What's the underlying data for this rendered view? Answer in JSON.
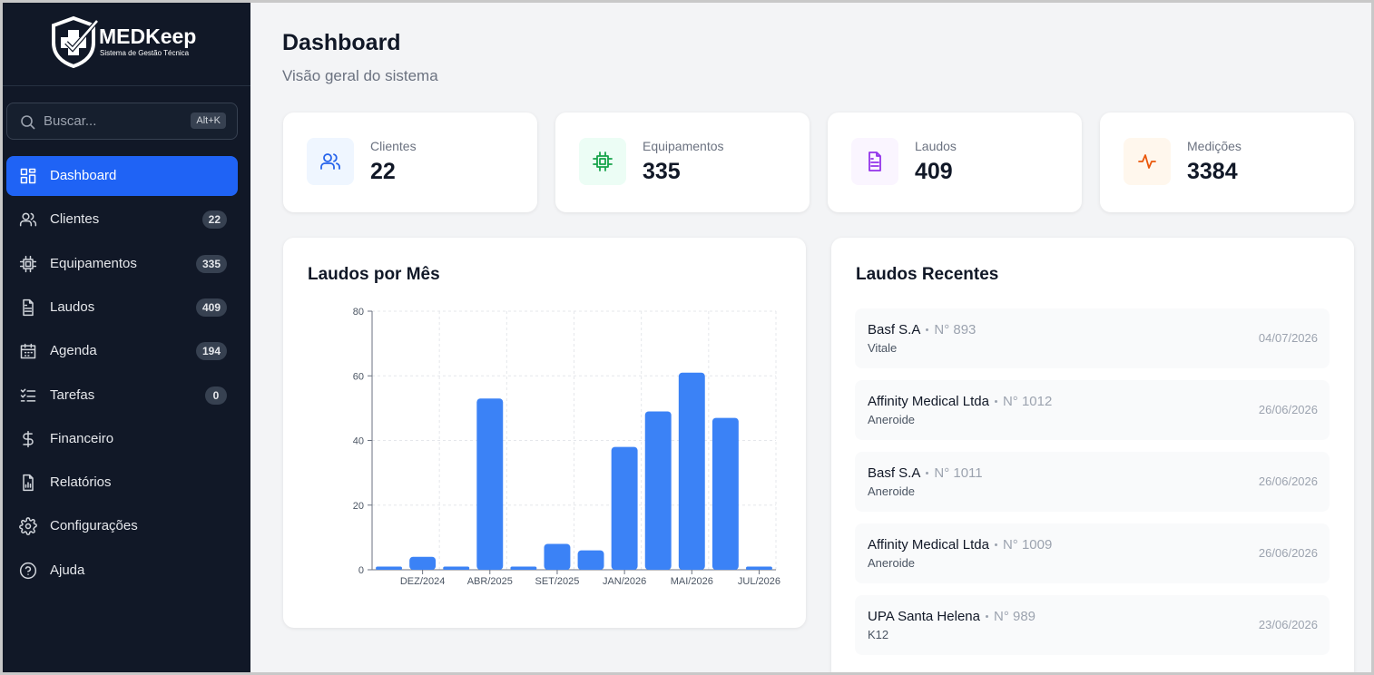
{
  "brand": {
    "name": "MEDKeep",
    "tagline": "Sistema de Gestão Técnica"
  },
  "search": {
    "placeholder": "Buscar...",
    "shortcut": "Alt+K"
  },
  "nav": [
    {
      "label": "Dashboard"
    },
    {
      "label": "Clientes",
      "count": 22
    },
    {
      "label": "Equipamentos",
      "count": 335
    },
    {
      "label": "Laudos",
      "count": 409
    },
    {
      "label": "Agenda",
      "count": 194
    },
    {
      "label": "Tarefas",
      "count": 0
    },
    {
      "label": "Financeiro"
    },
    {
      "label": "Relatórios"
    },
    {
      "label": "Configurações"
    },
    {
      "label": "Ajuda"
    }
  ],
  "header": {
    "title": "Dashboard",
    "subtitle": "Visão geral do sistema"
  },
  "stats": [
    {
      "label": "Clientes",
      "value": 22
    },
    {
      "label": "Equipamentos",
      "value": 335
    },
    {
      "label": "Laudos",
      "value": 409
    },
    {
      "label": "Medições",
      "value": 3384
    }
  ],
  "chart_data": {
    "type": "bar",
    "title": "Laudos por Mês",
    "categories": [
      null,
      "DEZ/2024",
      null,
      "ABR/2025",
      null,
      "SET/2025",
      null,
      "JAN/2026",
      null,
      "MAI/2026",
      null,
      "JUL/2026"
    ],
    "values": [
      1,
      4,
      1,
      53,
      1,
      8,
      6,
      38,
      49,
      61,
      47,
      1
    ],
    "color": "#3b82f6",
    "ylim": [
      0,
      80
    ],
    "yticks": [
      0,
      20,
      40,
      60,
      80
    ],
    "grid": true
  },
  "recent": {
    "title": "Laudos Recentes",
    "items": [
      {
        "client": "Basf S.A",
        "number": "N° 893",
        "model": "Vitale",
        "date": "04/07/2026"
      },
      {
        "client": "Affinity Medical Ltda",
        "number": "N° 1012",
        "model": "Aneroide",
        "date": "26/06/2026"
      },
      {
        "client": "Basf S.A",
        "number": "N° 1011",
        "model": "Aneroide",
        "date": "26/06/2026"
      },
      {
        "client": "Affinity Medical Ltda",
        "number": "N° 1009",
        "model": "Aneroide",
        "date": "26/06/2026"
      },
      {
        "client": "UPA Santa Helena",
        "number": "N° 989",
        "model": "K12",
        "date": "23/06/2026"
      }
    ]
  }
}
